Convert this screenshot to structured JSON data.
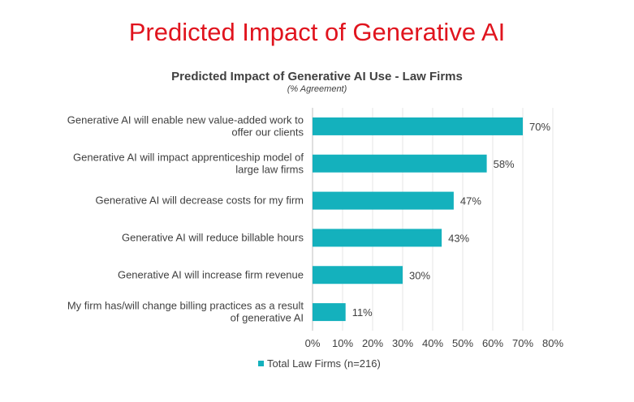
{
  "page": {
    "title": "Predicted Impact of Generative AI"
  },
  "chart_data": {
    "type": "bar",
    "orientation": "horizontal",
    "title": "Predicted Impact of Generative AI Use - Law Firms",
    "subtitle": "(% Agreement)",
    "categories": [
      [
        "Generative AI will enable new value-added work to",
        "offer our clients"
      ],
      [
        "Generative AI will impact apprenticeship model of",
        "large law firms"
      ],
      [
        "Generative AI will decrease costs for my firm"
      ],
      [
        "Generative AI will reduce billable hours"
      ],
      [
        "Generative AI will increase firm revenue"
      ],
      [
        "My firm has/will change billing practices as a result",
        "of generative AI"
      ]
    ],
    "series": [
      {
        "name": "Total Law Firms (n=216)",
        "values": [
          70,
          58,
          47,
          43,
          30,
          11
        ],
        "labels": [
          "70%",
          "58%",
          "47%",
          "43%",
          "30%",
          "11%"
        ],
        "color": "#14b1bd"
      }
    ],
    "xlim": [
      0,
      80
    ],
    "xticks": [
      0,
      10,
      20,
      30,
      40,
      50,
      60,
      70,
      80
    ],
    "xtick_labels": [
      "0%",
      "10%",
      "20%",
      "30%",
      "40%",
      "50%",
      "60%",
      "70%",
      "80%"
    ],
    "grid": "vertical",
    "legend": "bottom"
  }
}
